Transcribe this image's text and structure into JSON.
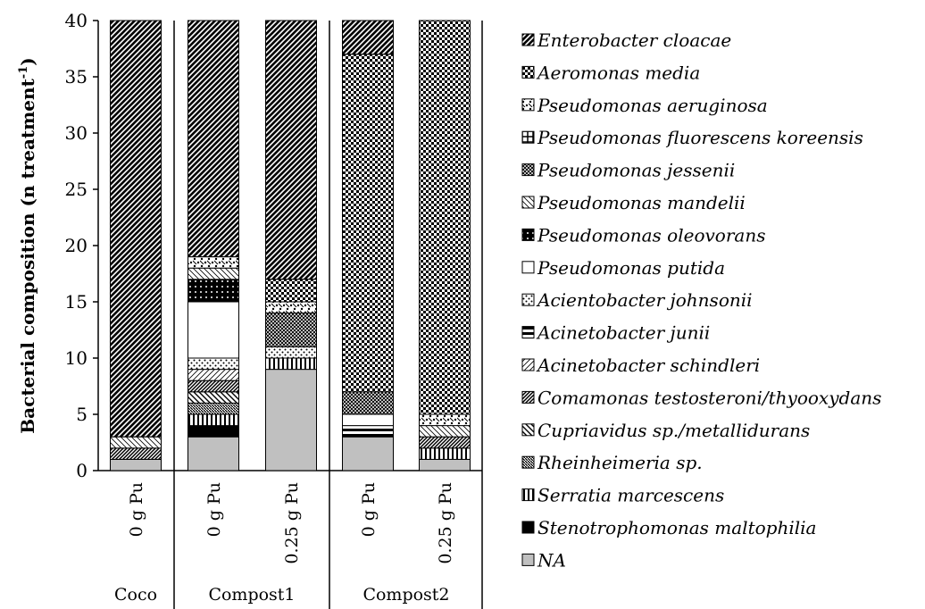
{
  "chart_data": {
    "type": "stacked_bar",
    "ylabel": "Bacterial  composition (n treatment",
    "ylabel_sup": "-1",
    "ylabel_end": ")",
    "categories": [
      "0 g Pu",
      "0 g Pu",
      "0.25 g Pu",
      "0 g Pu",
      "0.25 g Pu"
    ],
    "groups": [
      "Coco",
      "Compost1",
      "Compost2"
    ],
    "ylim": [
      0,
      40
    ],
    "yticks": [
      0,
      5,
      10,
      15,
      20,
      25,
      30,
      35,
      40
    ],
    "series": [
      {
        "name": "NA",
        "values": [
          1,
          3,
          9,
          3,
          1
        ]
      },
      {
        "name": "Stenotrophomonas maltophilia",
        "values": [
          0,
          1,
          0,
          0,
          0
        ]
      },
      {
        "name": "Serratia marcescens",
        "values": [
          0,
          1,
          1,
          0,
          1
        ]
      },
      {
        "name": "Rheinheimeria sp.",
        "values": [
          0,
          1,
          0,
          0,
          0
        ]
      },
      {
        "name": "Cupriavidus sp./metallidurans",
        "values": [
          0,
          1,
          0,
          0,
          0
        ]
      },
      {
        "name": "Comamonas testosteroni/thyooxydans",
        "values": [
          1,
          1,
          0,
          0,
          1
        ]
      },
      {
        "name": "Acinetobacter schindleri",
        "values": [
          0,
          1,
          0,
          0,
          0
        ]
      },
      {
        "name": "Acinetobacter junii",
        "values": [
          0,
          0,
          0,
          1,
          0
        ]
      },
      {
        "name": "Acientobacter johnsonii",
        "values": [
          0,
          1,
          1,
          0,
          0
        ]
      },
      {
        "name": "Pseudomonas putida",
        "values": [
          0,
          5,
          0,
          1,
          0
        ]
      },
      {
        "name": "Pseudomonas oleovorans",
        "values": [
          0,
          2,
          0,
          0,
          0
        ]
      },
      {
        "name": "Pseudomonas mandelii",
        "values": [
          1,
          1,
          0,
          0,
          1
        ]
      },
      {
        "name": "Pseudomonas jessenii",
        "values": [
          0,
          0,
          3,
          2,
          0
        ]
      },
      {
        "name": "Pseudomonas fluorescens koreensis",
        "values": [
          0,
          0,
          0,
          0,
          0
        ]
      },
      {
        "name": "Pseudomonas aeruginosa",
        "values": [
          0,
          1,
          1,
          0,
          1
        ]
      },
      {
        "name": "Aeromonas media",
        "values": [
          0,
          0,
          2,
          30,
          35
        ]
      },
      {
        "name": "Enterobacter cloacae",
        "values": [
          37,
          21,
          23,
          3,
          0
        ]
      }
    ]
  }
}
